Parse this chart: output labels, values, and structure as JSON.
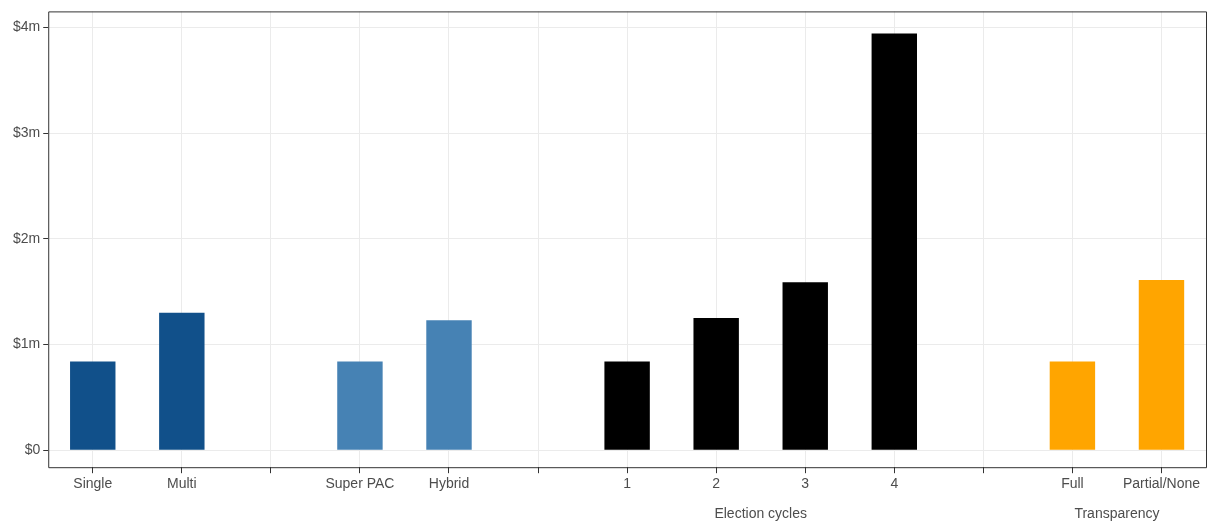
{
  "chart_data": {
    "type": "bar",
    "categories": [
      "Single",
      "Multi",
      null,
      "Super PAC",
      "Hybrid",
      null,
      "1",
      "2",
      "3",
      "4",
      null,
      "Full",
      "Partial/None"
    ],
    "values": [
      0.84,
      1.3,
      null,
      0.84,
      1.23,
      null,
      0.84,
      1.25,
      1.59,
      3.94,
      null,
      0.84,
      1.61
    ],
    "colors": [
      "#11508a",
      "#11508a",
      null,
      "#4682b4",
      "#4682b4",
      null,
      "#000000",
      "#000000",
      "#000000",
      "#000000",
      null,
      "#ffa500",
      "#ffa500"
    ],
    "ylim": [
      -0.16,
      4.15
    ],
    "yticks": [
      {
        "value": 0,
        "label": "$0"
      },
      {
        "value": 1,
        "label": "$1m"
      },
      {
        "value": 2,
        "label": "$2m"
      },
      {
        "value": 3,
        "label": "$3m"
      },
      {
        "value": 4,
        "label": "$4m"
      }
    ],
    "annotations": [
      "Election cycles",
      "Transparency"
    ],
    "grid": true,
    "legend": false
  }
}
